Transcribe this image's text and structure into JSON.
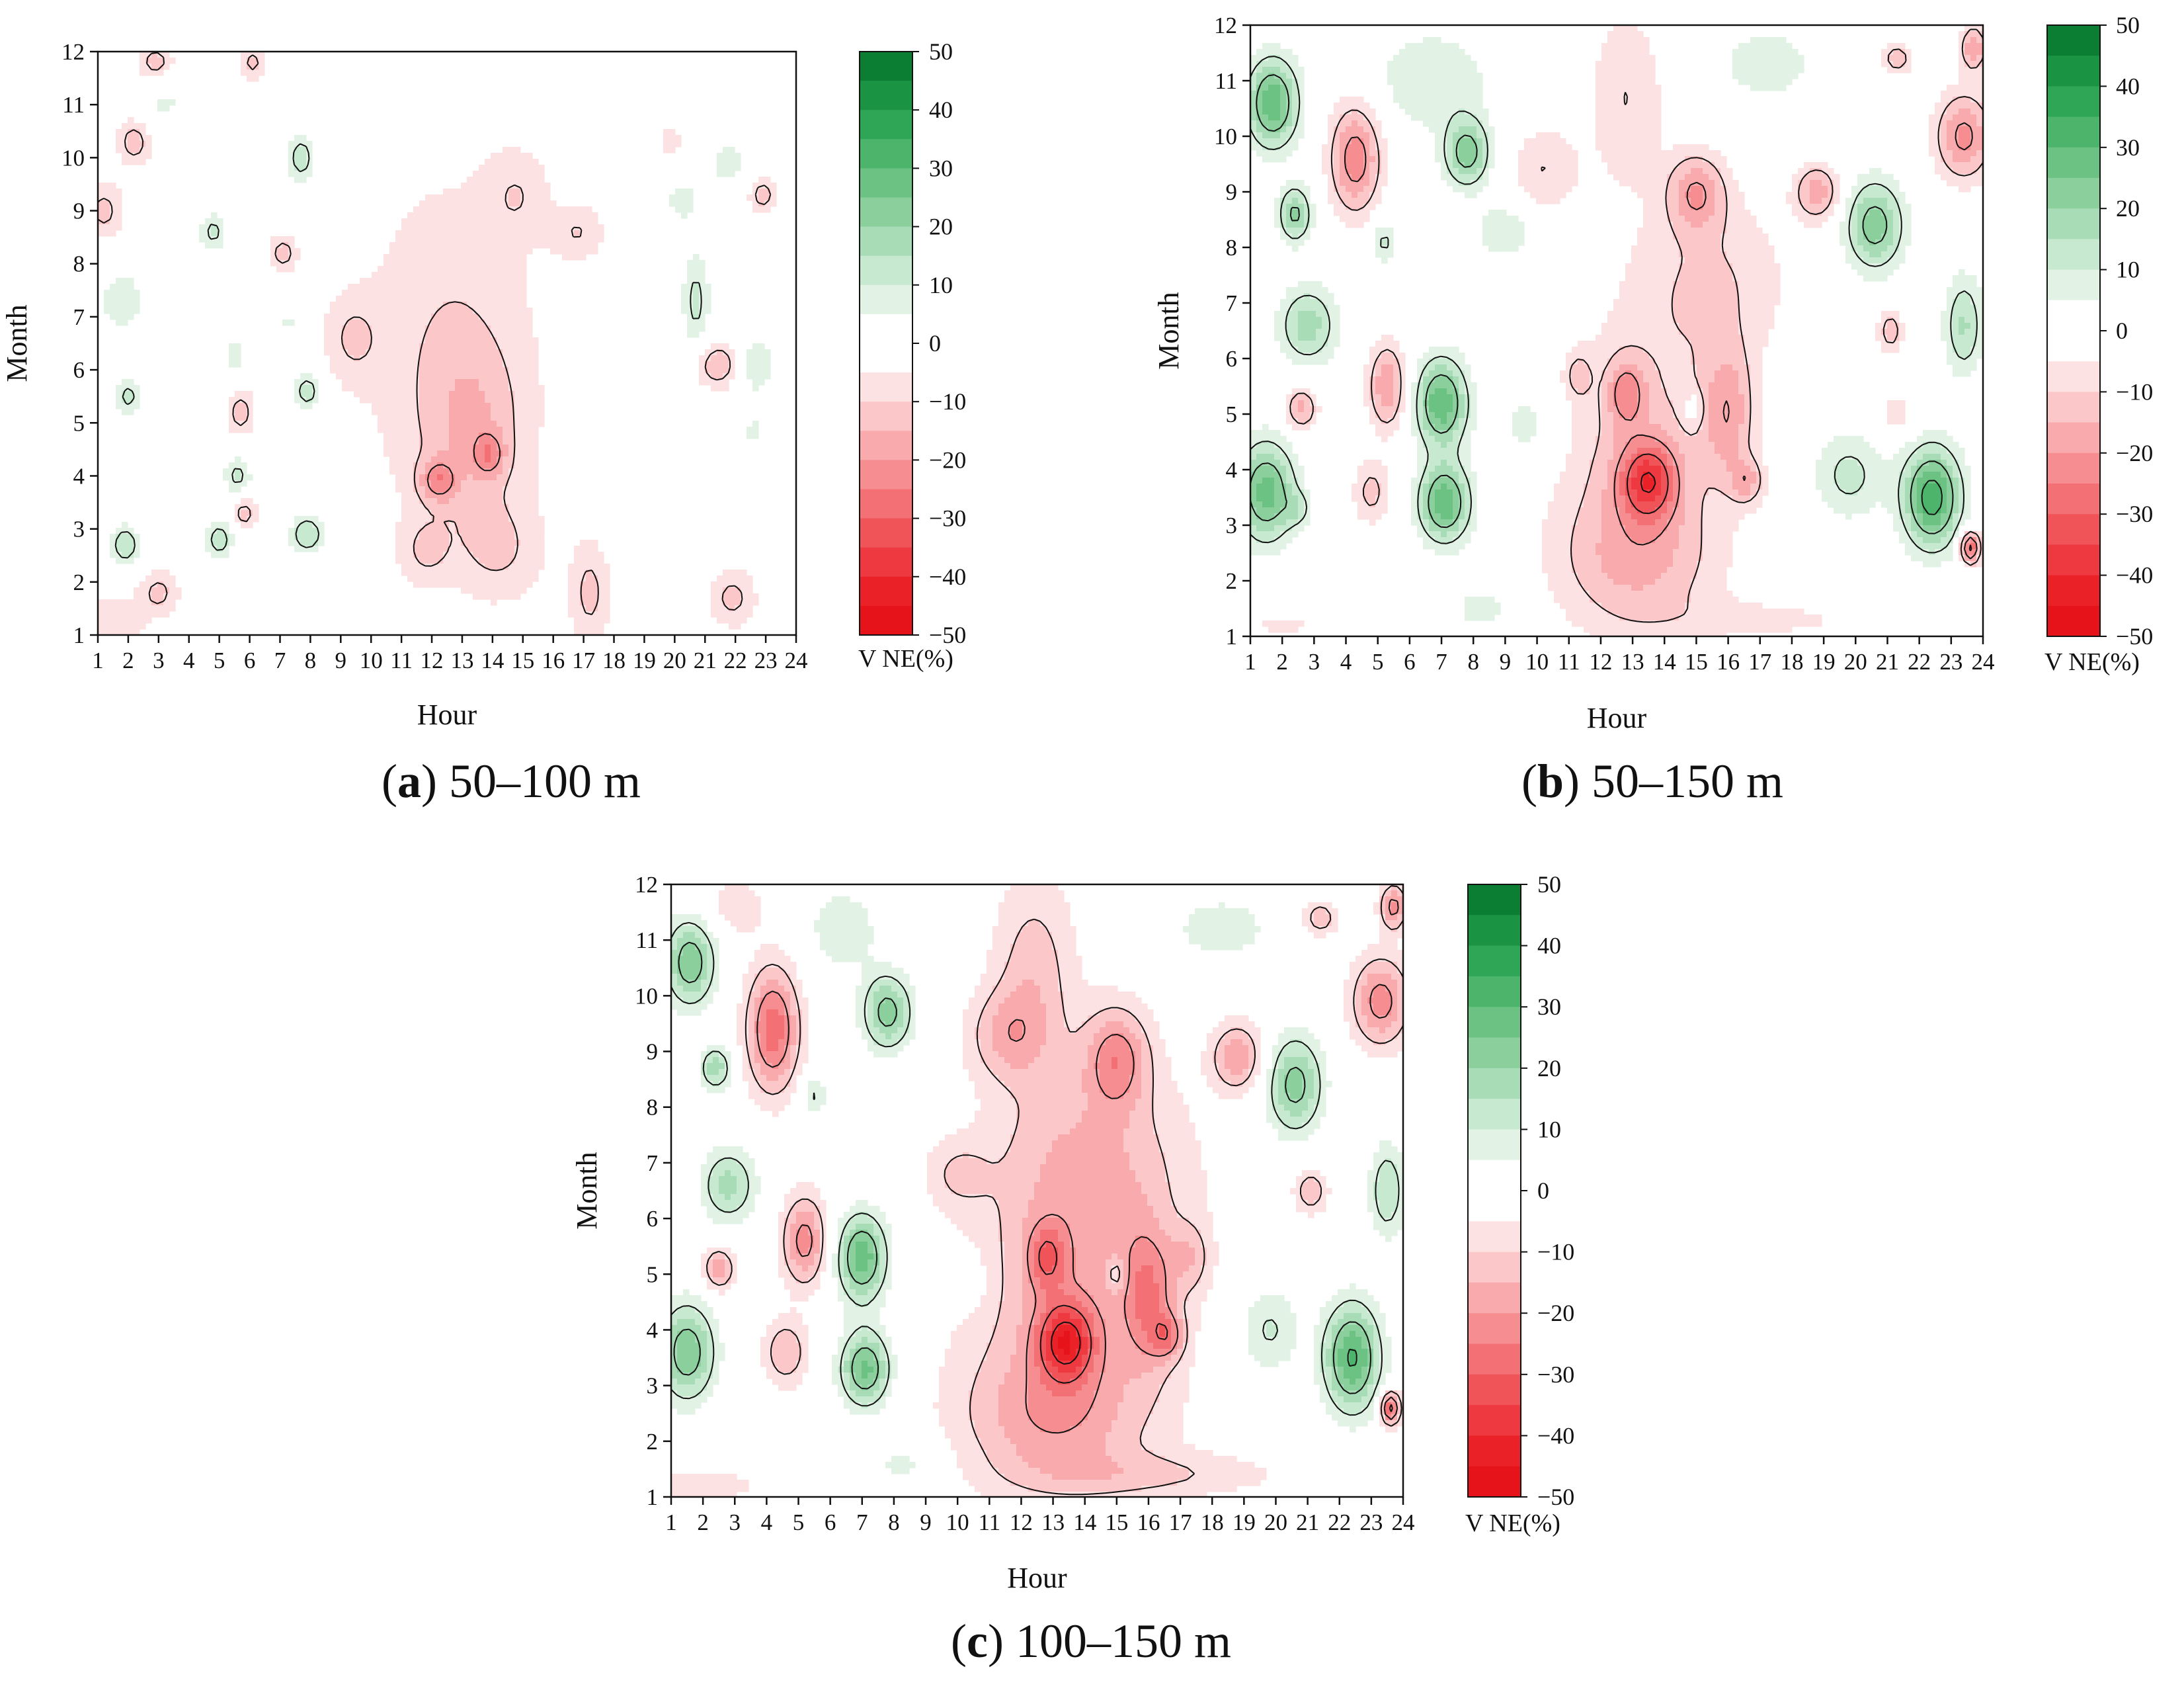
{
  "figure": {
    "colors": {
      "positive": [
        "#ffffff",
        "#e2f3e6",
        "#c6e9cf",
        "#a8dcb6",
        "#8acf9c",
        "#6cc283",
        "#4db46b",
        "#2ea655",
        "#1a9343",
        "#0b7e33",
        "#006d28"
      ],
      "negative": [
        "#ffffff",
        "#fde2e3",
        "#fbc7c9",
        "#f9aaad",
        "#f68d91",
        "#f37075",
        "#f05459",
        "#ed393f",
        "#ea2228",
        "#e6141a",
        "#e60000"
      ],
      "contour": "#111111",
      "frame": "#111111"
    }
  },
  "chart_data": [
    {
      "type": "heatmap",
      "panel_letter": "a",
      "caption_text": " 50–100 m",
      "xlabel": "Hour",
      "ylabel": "Month",
      "x_ticks": [
        "1",
        "2",
        "3",
        "4",
        "5",
        "6",
        "7",
        "8",
        "9",
        "10",
        "11",
        "12",
        "13",
        "14",
        "15",
        "16",
        "17",
        "18",
        "19",
        "20",
        "21",
        "22",
        "23",
        "24"
      ],
      "y_ticks": [
        "1",
        "2",
        "3",
        "4",
        "5",
        "6",
        "7",
        "8",
        "9",
        "10",
        "11",
        "12"
      ],
      "xlim": [
        1,
        24
      ],
      "ylim": [
        1,
        12
      ],
      "colorbar": {
        "title": "V NE(%)",
        "range": [
          -50,
          50
        ],
        "ticks": [
          "50",
          "40",
          "30",
          "20",
          "10",
          "0",
          "−10",
          "−20",
          "−30",
          "−40",
          "−50"
        ]
      },
      "background": -2,
      "features": [
        {
          "x": 12.6,
          "y": 6.4,
          "rx": 2.6,
          "ry": 3.0,
          "v": -8
        },
        {
          "x": 13.4,
          "y": 4.8,
          "rx": 1.6,
          "ry": 1.6,
          "v": -9
        },
        {
          "x": 12.2,
          "y": 3.9,
          "rx": 0.6,
          "ry": 0.4,
          "v": -16
        },
        {
          "x": 13.9,
          "y": 4.4,
          "rx": 0.5,
          "ry": 0.4,
          "v": -13
        },
        {
          "x": 14.2,
          "y": 2.6,
          "rx": 1.4,
          "ry": 0.9,
          "v": -8
        },
        {
          "x": 11.8,
          "y": 2.6,
          "rx": 0.8,
          "ry": 0.6,
          "v": -8
        },
        {
          "x": 17.2,
          "y": 1.8,
          "rx": 0.6,
          "ry": 0.9,
          "v": -10
        },
        {
          "x": 2.9,
          "y": 11.8,
          "rx": 0.5,
          "ry": 0.3,
          "v": -12
        },
        {
          "x": 2.2,
          "y": 10.3,
          "rx": 0.5,
          "ry": 0.4,
          "v": -12
        },
        {
          "x": 6.1,
          "y": 11.8,
          "rx": 0.4,
          "ry": 0.3,
          "v": -10
        },
        {
          "x": 5.7,
          "y": 5.2,
          "rx": 0.4,
          "ry": 0.4,
          "v": -12
        },
        {
          "x": 5.8,
          "y": 3.3,
          "rx": 0.4,
          "ry": 0.3,
          "v": -12
        },
        {
          "x": 1.2,
          "y": 9.0,
          "rx": 0.6,
          "ry": 0.5,
          "v": -10
        },
        {
          "x": 3.0,
          "y": 1.8,
          "rx": 0.6,
          "ry": 0.4,
          "v": -10
        },
        {
          "x": 1.6,
          "y": 1.3,
          "rx": 0.9,
          "ry": 0.4,
          "v": -8
        },
        {
          "x": 21.4,
          "y": 6.1,
          "rx": 0.7,
          "ry": 0.4,
          "v": -14
        },
        {
          "x": 22.9,
          "y": 9.3,
          "rx": 0.4,
          "ry": 0.3,
          "v": -12
        },
        {
          "x": 19.8,
          "y": 10.3,
          "rx": 0.5,
          "ry": 0.4,
          "v": -8
        },
        {
          "x": 21.9,
          "y": 1.7,
          "rx": 0.7,
          "ry": 0.5,
          "v": -10
        },
        {
          "x": 7.1,
          "y": 8.2,
          "rx": 0.4,
          "ry": 0.3,
          "v": -12
        },
        {
          "x": 16.8,
          "y": 8.6,
          "rx": 0.8,
          "ry": 0.5,
          "v": -8
        },
        {
          "x": 9.4,
          "y": 6.6,
          "rx": 0.9,
          "ry": 0.8,
          "v": -8
        },
        {
          "x": 14.8,
          "y": 9.3,
          "rx": 1.0,
          "ry": 0.8,
          "v": -7
        },
        {
          "x": 7.7,
          "y": 10.0,
          "rx": 0.5,
          "ry": 0.5,
          "v": 16
        },
        {
          "x": 4.8,
          "y": 8.6,
          "rx": 0.5,
          "ry": 0.4,
          "v": 14
        },
        {
          "x": 2.0,
          "y": 5.5,
          "rx": 0.5,
          "ry": 0.4,
          "v": 14
        },
        {
          "x": 7.9,
          "y": 5.6,
          "rx": 0.5,
          "ry": 0.4,
          "v": 16
        },
        {
          "x": 5.6,
          "y": 4.0,
          "rx": 0.5,
          "ry": 0.4,
          "v": 14
        },
        {
          "x": 1.9,
          "y": 2.7,
          "rx": 0.5,
          "ry": 0.4,
          "v": 18
        },
        {
          "x": 5.0,
          "y": 2.8,
          "rx": 0.5,
          "ry": 0.4,
          "v": 16
        },
        {
          "x": 7.9,
          "y": 2.9,
          "rx": 0.6,
          "ry": 0.4,
          "v": 18
        },
        {
          "x": 1.8,
          "y": 7.3,
          "rx": 0.8,
          "ry": 0.6,
          "v": 12
        },
        {
          "x": 20.7,
          "y": 7.3,
          "rx": 0.5,
          "ry": 1.0,
          "v": 14
        },
        {
          "x": 22.7,
          "y": 6.1,
          "rx": 0.6,
          "ry": 0.6,
          "v": 12
        },
        {
          "x": 20.2,
          "y": 9.2,
          "rx": 1.0,
          "ry": 0.7,
          "v": 8
        },
        {
          "x": 21.8,
          "y": 9.9,
          "rx": 0.6,
          "ry": 0.5,
          "v": 10
        },
        {
          "x": 18.6,
          "y": 10.7,
          "rx": 1.2,
          "ry": 0.7,
          "v": 7
        },
        {
          "x": 3.2,
          "y": 11.0,
          "rx": 0.8,
          "ry": 0.5,
          "v": 8
        },
        {
          "x": 5.5,
          "y": 6.3,
          "rx": 0.4,
          "ry": 0.5,
          "v": 10
        },
        {
          "x": 17.8,
          "y": 4.3,
          "rx": 1.0,
          "ry": 0.8,
          "v": 7
        },
        {
          "x": 20.4,
          "y": 3.6,
          "rx": 0.8,
          "ry": 0.7,
          "v": 7
        },
        {
          "x": 22.6,
          "y": 4.8,
          "rx": 0.6,
          "ry": 0.5,
          "v": 8
        },
        {
          "x": 8.5,
          "y": 1.6,
          "rx": 0.8,
          "ry": 0.4,
          "v": 6
        },
        {
          "x": 7.3,
          "y": 6.9,
          "rx": 0.6,
          "ry": 0.4,
          "v": 8
        },
        {
          "x": 3.6,
          "y": 3.9,
          "rx": 0.7,
          "ry": 0.5,
          "v": 6
        }
      ]
    },
    {
      "type": "heatmap",
      "panel_letter": "b",
      "caption_text": " 50–150 m",
      "xlabel": "Hour",
      "ylabel": "Month",
      "x_ticks": [
        "1",
        "2",
        "3",
        "4",
        "5",
        "6",
        "7",
        "8",
        "9",
        "10",
        "11",
        "12",
        "13",
        "14",
        "15",
        "16",
        "17",
        "18",
        "19",
        "20",
        "21",
        "22",
        "23",
        "24"
      ],
      "y_ticks": [
        "1",
        "2",
        "3",
        "4",
        "5",
        "6",
        "7",
        "8",
        "9",
        "10",
        "11",
        "12"
      ],
      "xlim": [
        1,
        24
      ],
      "ylim": [
        1,
        12
      ],
      "colorbar": {
        "title": "V NE(%)",
        "range": [
          -50,
          50
        ],
        "ticks": [
          "50",
          "40",
          "30",
          "20",
          "10",
          "0",
          "−10",
          "−20",
          "−30",
          "−40",
          "−50"
        ]
      },
      "background": 0,
      "features": [
        {
          "x": 13.2,
          "y": 4.0,
          "rx": 2.6,
          "ry": 2.6,
          "v": -12
        },
        {
          "x": 13.5,
          "y": 3.8,
          "rx": 0.9,
          "ry": 0.7,
          "v": -28
        },
        {
          "x": 16.0,
          "y": 5.0,
          "rx": 0.8,
          "ry": 1.2,
          "v": -16
        },
        {
          "x": 16.6,
          "y": 3.8,
          "rx": 0.5,
          "ry": 0.4,
          "v": -14
        },
        {
          "x": 15.0,
          "y": 9.0,
          "rx": 0.9,
          "ry": 0.7,
          "v": -18
        },
        {
          "x": 15.5,
          "y": 7.4,
          "rx": 2.5,
          "ry": 1.6,
          "v": -10
        },
        {
          "x": 12.8,
          "y": 10.7,
          "rx": 1.2,
          "ry": 1.6,
          "v": -10
        },
        {
          "x": 12.8,
          "y": 5.4,
          "rx": 0.6,
          "ry": 0.6,
          "v": -16
        },
        {
          "x": 4.3,
          "y": 9.6,
          "rx": 0.8,
          "ry": 1.0,
          "v": -24
        },
        {
          "x": 5.3,
          "y": 5.5,
          "rx": 0.6,
          "ry": 0.8,
          "v": -20
        },
        {
          "x": 2.6,
          "y": 5.1,
          "rx": 0.5,
          "ry": 0.4,
          "v": -18
        },
        {
          "x": 4.8,
          "y": 3.6,
          "rx": 0.6,
          "ry": 0.6,
          "v": -12
        },
        {
          "x": 18.8,
          "y": 9.0,
          "rx": 0.7,
          "ry": 0.5,
          "v": -18
        },
        {
          "x": 23.4,
          "y": 10.0,
          "rx": 0.9,
          "ry": 0.8,
          "v": -22
        },
        {
          "x": 23.7,
          "y": 11.6,
          "rx": 0.4,
          "ry": 0.4,
          "v": -20
        },
        {
          "x": 21.3,
          "y": 11.4,
          "rx": 0.5,
          "ry": 0.3,
          "v": -14
        },
        {
          "x": 21.1,
          "y": 6.5,
          "rx": 0.4,
          "ry": 0.4,
          "v": -14
        },
        {
          "x": 23.6,
          "y": 2.6,
          "rx": 0.3,
          "ry": 0.3,
          "v": -34
        },
        {
          "x": 21.3,
          "y": 5.0,
          "rx": 0.6,
          "ry": 0.4,
          "v": -8
        },
        {
          "x": 10.2,
          "y": 9.4,
          "rx": 1.1,
          "ry": 0.8,
          "v": -10
        },
        {
          "x": 13.0,
          "y": 2.3,
          "rx": 2.6,
          "ry": 1.2,
          "v": -10
        },
        {
          "x": 17.5,
          "y": 1.3,
          "rx": 3.5,
          "ry": 0.4,
          "v": -6
        },
        {
          "x": 2.0,
          "y": 1.2,
          "rx": 1.8,
          "ry": 0.3,
          "v": -6
        },
        {
          "x": 11.3,
          "y": 5.7,
          "rx": 0.4,
          "ry": 0.4,
          "v": -10
        },
        {
          "x": 1.7,
          "y": 10.6,
          "rx": 0.8,
          "ry": 0.8,
          "v": 30
        },
        {
          "x": 2.4,
          "y": 8.6,
          "rx": 0.5,
          "ry": 0.5,
          "v": 22
        },
        {
          "x": 2.8,
          "y": 6.6,
          "rx": 0.9,
          "ry": 0.7,
          "v": 18
        },
        {
          "x": 1.5,
          "y": 3.6,
          "rx": 0.9,
          "ry": 0.9,
          "v": 28
        },
        {
          "x": 7.0,
          "y": 5.2,
          "rx": 0.8,
          "ry": 0.8,
          "v": 30
        },
        {
          "x": 7.1,
          "y": 3.4,
          "rx": 0.8,
          "ry": 0.7,
          "v": 30
        },
        {
          "x": 7.8,
          "y": 9.7,
          "rx": 0.7,
          "ry": 0.6,
          "v": 24
        },
        {
          "x": 6.7,
          "y": 11.0,
          "rx": 1.8,
          "ry": 0.9,
          "v": 10
        },
        {
          "x": 20.6,
          "y": 8.4,
          "rx": 0.9,
          "ry": 0.8,
          "v": 24
        },
        {
          "x": 22.4,
          "y": 3.5,
          "rx": 0.9,
          "ry": 0.9,
          "v": 34
        },
        {
          "x": 23.4,
          "y": 6.6,
          "rx": 0.6,
          "ry": 0.9,
          "v": 16
        },
        {
          "x": 19.8,
          "y": 3.9,
          "rx": 1.1,
          "ry": 0.8,
          "v": 12
        },
        {
          "x": 17.2,
          "y": 11.3,
          "rx": 1.4,
          "ry": 0.6,
          "v": 10
        },
        {
          "x": 5.2,
          "y": 8.1,
          "rx": 0.4,
          "ry": 0.4,
          "v": 12
        },
        {
          "x": 9.7,
          "y": 4.8,
          "rx": 1.0,
          "ry": 0.8,
          "v": 8
        },
        {
          "x": 9.0,
          "y": 8.3,
          "rx": 0.9,
          "ry": 0.5,
          "v": 10
        },
        {
          "x": 14.9,
          "y": 5.1,
          "rx": 0.3,
          "ry": 0.3,
          "v": 10
        },
        {
          "x": 2.5,
          "y": 3.3,
          "rx": 0.4,
          "ry": 0.3,
          "v": 10
        },
        {
          "x": 8.3,
          "y": 1.5,
          "rx": 1.2,
          "ry": 0.5,
          "v": 7
        }
      ]
    },
    {
      "type": "heatmap",
      "panel_letter": "c",
      "caption_text": " 100–150 m",
      "xlabel": "Hour",
      "ylabel": "Month",
      "x_ticks": [
        "1",
        "2",
        "3",
        "4",
        "5",
        "6",
        "7",
        "8",
        "9",
        "10",
        "11",
        "12",
        "13",
        "14",
        "15",
        "16",
        "17",
        "18",
        "19",
        "20",
        "21",
        "22",
        "23",
        "24"
      ],
      "y_ticks": [
        "1",
        "2",
        "3",
        "4",
        "5",
        "6",
        "7",
        "8",
        "9",
        "10",
        "11",
        "12"
      ],
      "xlim": [
        1,
        24
      ],
      "ylim": [
        1,
        12
      ],
      "colorbar": {
        "title": "V NE(%)",
        "range": [
          -50,
          50
        ],
        "ticks": [
          "50",
          "40",
          "30",
          "20",
          "10",
          "0",
          "−10",
          "−20",
          "−30",
          "−40",
          "−50"
        ]
      },
      "background": -1,
      "features": [
        {
          "x": 13.6,
          "y": 4.2,
          "rx": 3.2,
          "ry": 2.8,
          "v": -13
        },
        {
          "x": 13.4,
          "y": 3.8,
          "rx": 0.9,
          "ry": 0.7,
          "v": -30
        },
        {
          "x": 16.0,
          "y": 4.6,
          "rx": 0.8,
          "ry": 1.2,
          "v": -18
        },
        {
          "x": 16.6,
          "y": 3.9,
          "rx": 0.5,
          "ry": 0.4,
          "v": -16
        },
        {
          "x": 15.0,
          "y": 8.9,
          "rx": 1.0,
          "ry": 0.9,
          "v": -20
        },
        {
          "x": 14.2,
          "y": 7.0,
          "rx": 3.0,
          "ry": 1.8,
          "v": -12
        },
        {
          "x": 12.4,
          "y": 10.4,
          "rx": 1.3,
          "ry": 1.8,
          "v": -12
        },
        {
          "x": 11.5,
          "y": 9.3,
          "rx": 1.2,
          "ry": 0.8,
          "v": -12
        },
        {
          "x": 12.8,
          "y": 5.3,
          "rx": 0.6,
          "ry": 0.6,
          "v": -18
        },
        {
          "x": 12.8,
          "y": 2.4,
          "rx": 2.8,
          "ry": 1.2,
          "v": -12
        },
        {
          "x": 16.4,
          "y": 1.4,
          "rx": 4.0,
          "ry": 0.4,
          "v": -8
        },
        {
          "x": 4.2,
          "y": 9.4,
          "rx": 0.8,
          "ry": 1.1,
          "v": -28
        },
        {
          "x": 5.2,
          "y": 5.6,
          "rx": 0.7,
          "ry": 0.8,
          "v": -22
        },
        {
          "x": 2.5,
          "y": 5.1,
          "rx": 0.5,
          "ry": 0.4,
          "v": -18
        },
        {
          "x": 4.6,
          "y": 3.6,
          "rx": 0.7,
          "ry": 0.6,
          "v": -14
        },
        {
          "x": 18.8,
          "y": 8.9,
          "rx": 0.8,
          "ry": 0.6,
          "v": -18
        },
        {
          "x": 23.3,
          "y": 9.9,
          "rx": 0.9,
          "ry": 0.8,
          "v": -22
        },
        {
          "x": 23.7,
          "y": 11.6,
          "rx": 0.4,
          "ry": 0.4,
          "v": -22
        },
        {
          "x": 21.4,
          "y": 11.4,
          "rx": 0.5,
          "ry": 0.3,
          "v": -14
        },
        {
          "x": 21.1,
          "y": 6.5,
          "rx": 0.5,
          "ry": 0.4,
          "v": -14
        },
        {
          "x": 23.6,
          "y": 2.6,
          "rx": 0.3,
          "ry": 0.3,
          "v": -34
        },
        {
          "x": 3.0,
          "y": 11.6,
          "rx": 1.0,
          "ry": 0.5,
          "v": -8
        },
        {
          "x": 2.0,
          "y": 1.2,
          "rx": 1.8,
          "ry": 0.3,
          "v": -8
        },
        {
          "x": 17.3,
          "y": 5.3,
          "rx": 0.6,
          "ry": 0.6,
          "v": -10
        },
        {
          "x": 10.0,
          "y": 6.8,
          "rx": 1.0,
          "ry": 0.6,
          "v": -8
        },
        {
          "x": 1.6,
          "y": 10.6,
          "rx": 0.8,
          "ry": 0.8,
          "v": 26
        },
        {
          "x": 2.4,
          "y": 8.7,
          "rx": 0.5,
          "ry": 0.4,
          "v": 20
        },
        {
          "x": 2.8,
          "y": 6.6,
          "rx": 0.9,
          "ry": 0.7,
          "v": 18
        },
        {
          "x": 1.5,
          "y": 3.6,
          "rx": 0.9,
          "ry": 0.9,
          "v": 26
        },
        {
          "x": 7.0,
          "y": 5.3,
          "rx": 0.8,
          "ry": 0.8,
          "v": 30
        },
        {
          "x": 7.1,
          "y": 3.3,
          "rx": 0.8,
          "ry": 0.7,
          "v": 28
        },
        {
          "x": 7.8,
          "y": 9.7,
          "rx": 0.8,
          "ry": 0.7,
          "v": 24
        },
        {
          "x": 6.4,
          "y": 11.2,
          "rx": 1.2,
          "ry": 0.8,
          "v": 10
        },
        {
          "x": 20.6,
          "y": 8.4,
          "rx": 0.9,
          "ry": 0.9,
          "v": 24
        },
        {
          "x": 22.4,
          "y": 3.5,
          "rx": 0.9,
          "ry": 1.0,
          "v": 32
        },
        {
          "x": 23.5,
          "y": 6.5,
          "rx": 0.6,
          "ry": 0.9,
          "v": 16
        },
        {
          "x": 18.3,
          "y": 11.2,
          "rx": 1.6,
          "ry": 0.6,
          "v": 10
        },
        {
          "x": 5.5,
          "y": 8.2,
          "rx": 0.4,
          "ry": 0.4,
          "v": 12
        },
        {
          "x": 10.2,
          "y": 4.9,
          "rx": 0.6,
          "ry": 0.5,
          "v": 10
        },
        {
          "x": 19.8,
          "y": 4.0,
          "rx": 1.0,
          "ry": 0.8,
          "v": 12
        },
        {
          "x": 15.0,
          "y": 5.0,
          "rx": 0.3,
          "ry": 0.3,
          "v": 10
        },
        {
          "x": 8.3,
          "y": 1.6,
          "rx": 1.2,
          "ry": 0.5,
          "v": 8
        }
      ]
    }
  ]
}
